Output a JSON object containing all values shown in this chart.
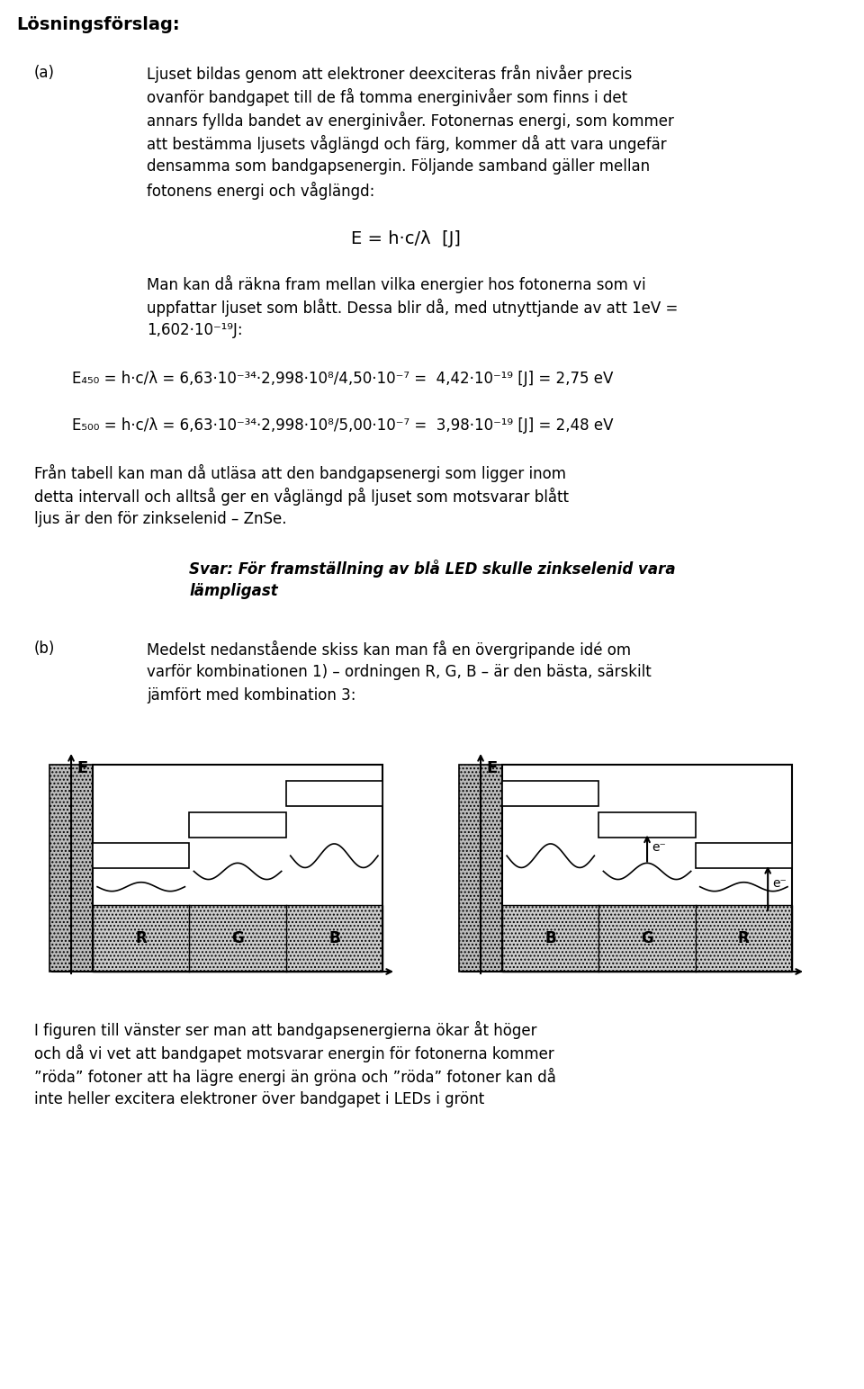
{
  "bg_color": "#ffffff",
  "heading": "Lösningsförslag:",
  "para_a_label": "(a)",
  "para_a_lines": [
    "Ljuset bildas genom att elektroner deexciteras från nivåer precis",
    "ovanför bandgapet till de få tomma energinivåer som finns i det",
    "annars fyllda bandet av energinivåer. Fotonernas energi, som kommer",
    "att bestämma ljusets våglängd och färg, kommer då att vara ungefär",
    "densamma som bandgapsenergin. Följande samband gäller mellan",
    "fotonens energi och våglängd:"
  ],
  "formula": "E = h·c/λ  [J]",
  "para_b_lines": [
    "Man kan då räkna fram mellan vilka energier hos fotonerna som vi",
    "uppfattar ljuset som blått. Dessa blir då, med utnyttjande av att 1eV =",
    "1,602·10⁻¹⁹J:"
  ],
  "eq1": "E₄₅₀ = h·c/λ = 6,63·10⁻³⁴·2,998·10⁸/4,50·10⁻⁷ =  4,42·10⁻¹⁹ [J] = 2,75 eV",
  "eq2": "E₅₀₀ = h·c/λ = 6,63·10⁻³⁴·2,998·10⁸/5,00·10⁻⁷ =  3,98·10⁻¹⁹ [J] = 2,48 eV",
  "para_c_lines": [
    "Från tabell kan man då utläsa att den bandgapsenergi som ligger inom",
    "detta intervall och alltså ger en våglängd på ljuset som motsvarar blått",
    "ljus är den för zinkselenid – ZnSe."
  ],
  "answer_lines": [
    "Svar: För framställning av blå LED skulle zinkselenid vara",
    "lämpligast"
  ],
  "para_b_label": "(b)",
  "para_d_lines": [
    "Medelst nedanstående skiss kan man få en övergripande idé om",
    "varför kombinationen 1) – ordningen R, G, B – är den bästa, särskilt",
    "jämfört med kombination 3:"
  ],
  "para_e_lines": [
    "I figuren till vänster ser man att bandgapsenergierna ökar åt höger",
    "och då vi vet att bandgapet motsvarar energin för fotonerna kommer",
    "”röda” fotoner att ha lägre energi än gröna och ”röda” fotoner kan då",
    "inte heller excitera elektroner över bandgapet i LEDs i grönt"
  ],
  "diag_left_labels": [
    "R",
    "G",
    "B"
  ],
  "diag_right_labels": [
    "B",
    "G",
    "R"
  ],
  "hatch_color": "#aaaaaa",
  "wave_color": "#000000"
}
